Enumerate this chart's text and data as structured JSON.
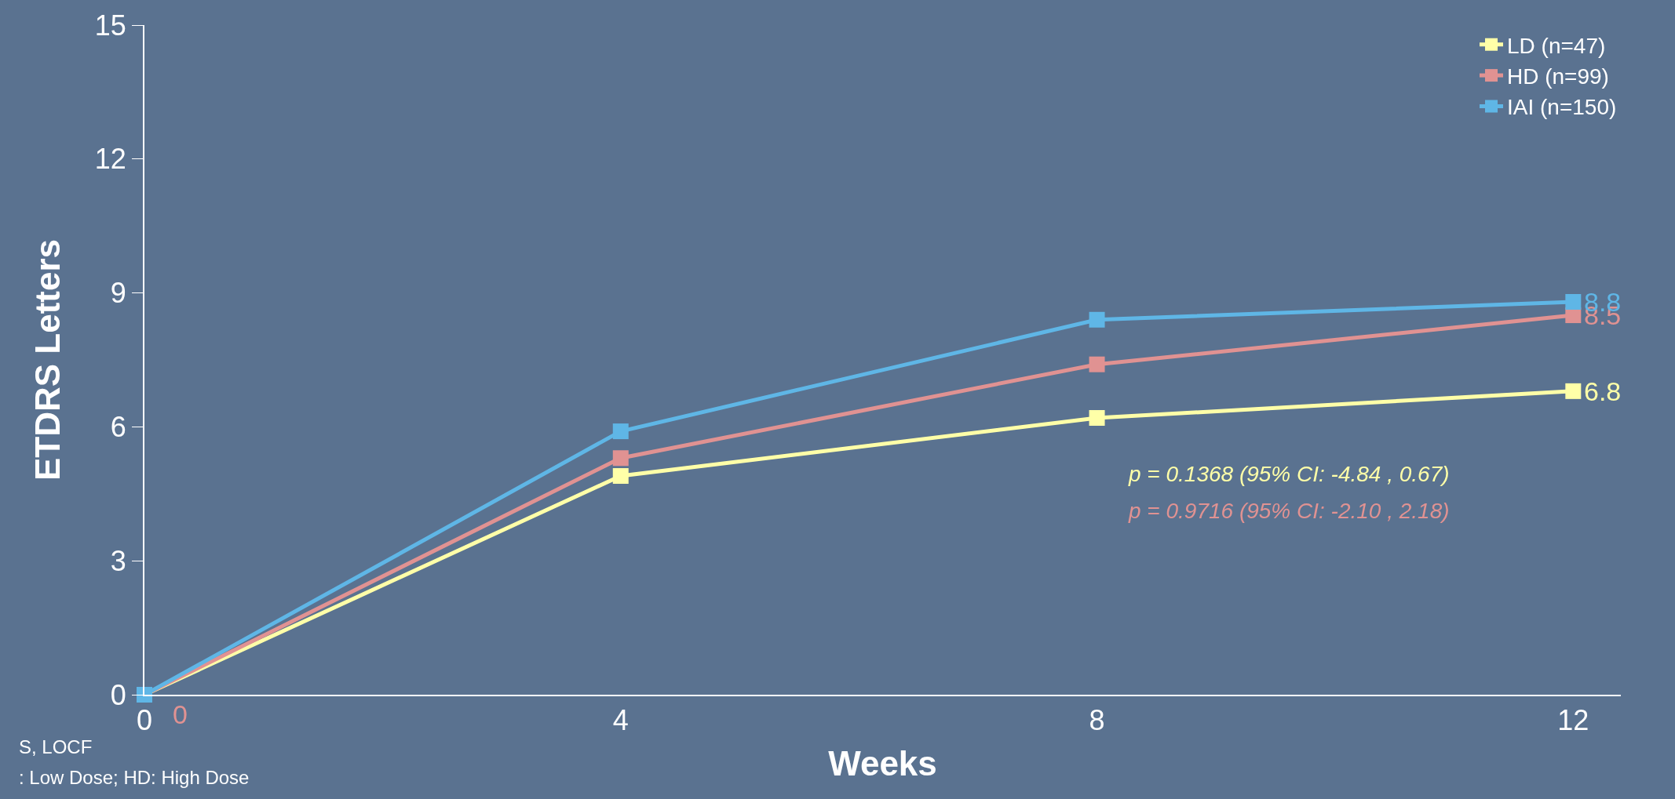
{
  "chart_data": {
    "type": "line",
    "xlabel": "Weeks",
    "ylabel": "ETDRS Letters",
    "x": [
      0,
      4,
      8,
      12
    ],
    "series": [
      {
        "name": "LD (n=47)",
        "color": "#ffffa8",
        "values": [
          0,
          4.9,
          6.2,
          6.8
        ],
        "value_labels": [
          null,
          null,
          null,
          "6.8"
        ]
      },
      {
        "name": "HD (n=99)",
        "color": "#e09292",
        "values": [
          0,
          5.3,
          7.4,
          8.5
        ],
        "value_labels": [
          "0",
          null,
          null,
          "8.5"
        ]
      },
      {
        "name": "IAI (n=150)",
        "color": "#5fb6e6",
        "values": [
          0,
          5.9,
          8.4,
          8.8
        ],
        "value_labels": [
          null,
          null,
          null,
          "8.8"
        ]
      }
    ],
    "xlim": [
      0,
      12.4
    ],
    "xticks": [
      0,
      4,
      8,
      12
    ],
    "ylim": [
      0,
      15
    ],
    "yticks": [
      0,
      3,
      6,
      9,
      12,
      15
    ],
    "grid": false,
    "legend": "top right",
    "marker": "square",
    "line_style": "solid",
    "annotations": [
      "p = 0.1368 (95% CI: -4.84 , 0.67)",
      "p = 0.9716 (95% CI: -2.10 , 2.18)",
      "S, LOCF",
      ": Low Dose; HD: High Dose"
    ]
  }
}
